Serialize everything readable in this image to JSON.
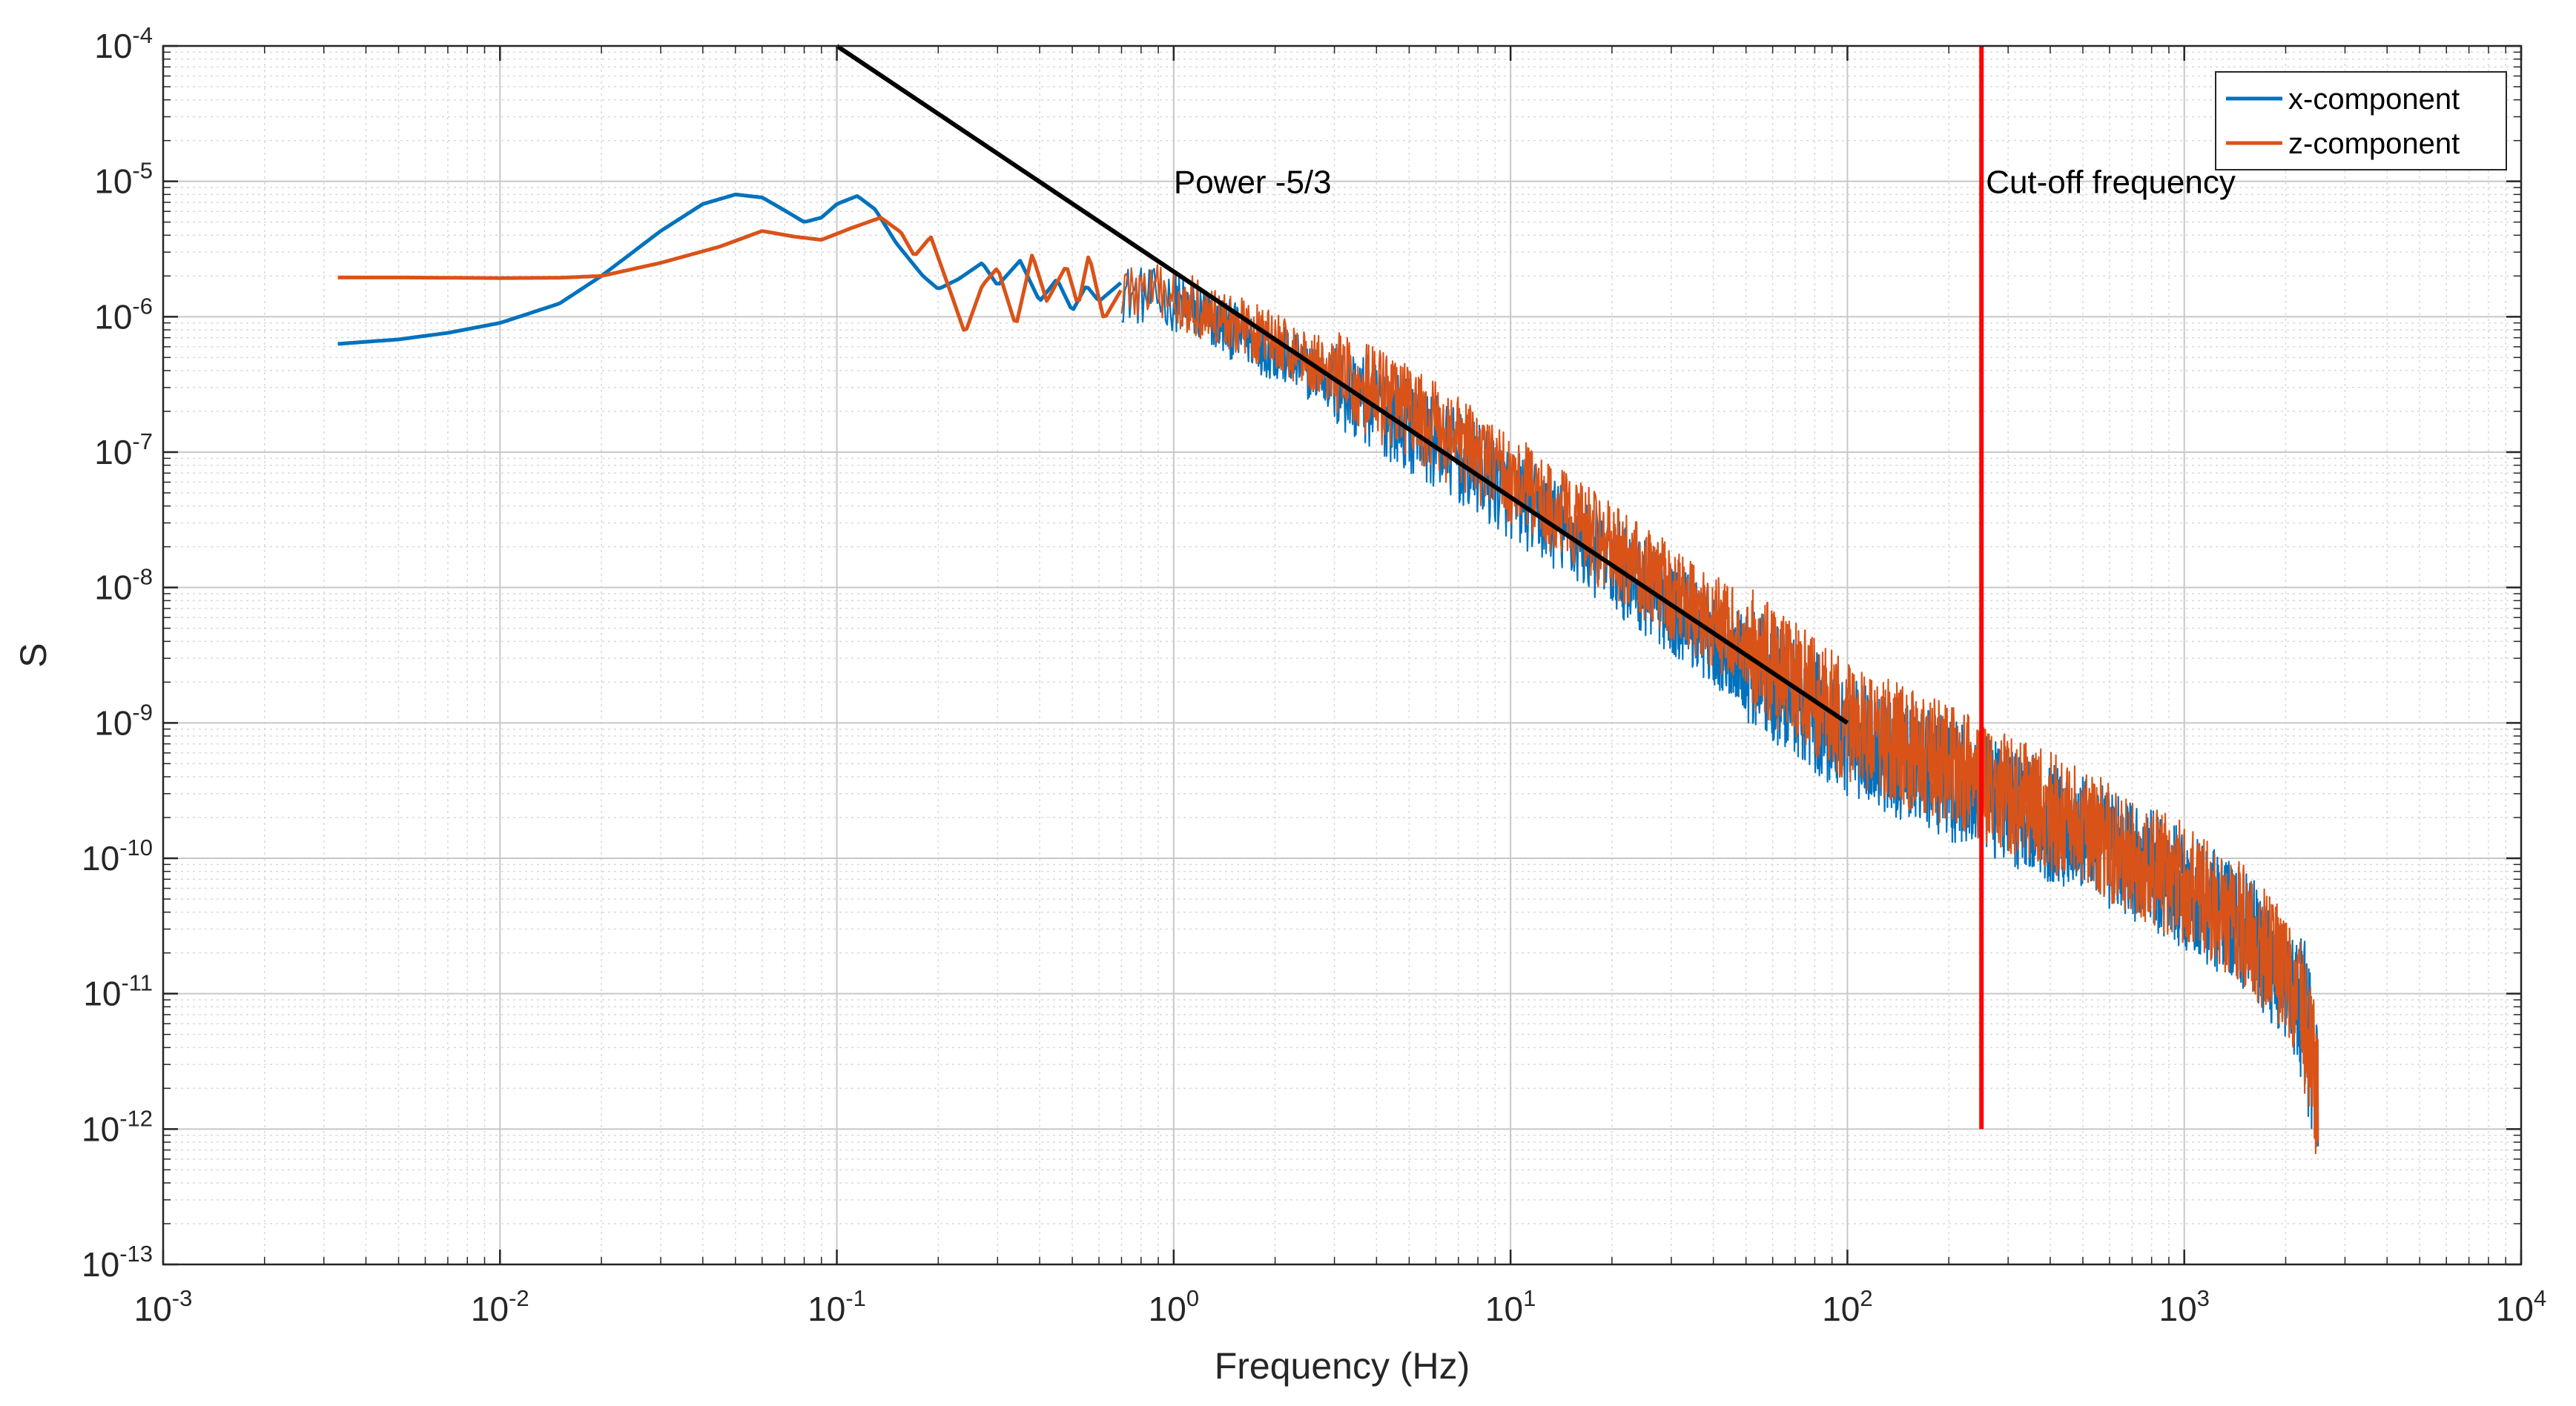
{
  "chart_data": {
    "type": "line",
    "title": "",
    "xlabel": "Frequency (Hz)",
    "ylabel": "S",
    "xscale": "log",
    "yscale": "log",
    "xlim": [
      0.001,
      10000
    ],
    "ylim": [
      1e-13,
      0.0001
    ],
    "grid": true,
    "minor_grid": true,
    "x_ticks": [
      {
        "base": "10",
        "exp": "-3",
        "value": 0.001
      },
      {
        "base": "10",
        "exp": "-2",
        "value": 0.01
      },
      {
        "base": "10",
        "exp": "-1",
        "value": 0.1
      },
      {
        "base": "10",
        "exp": "0",
        "value": 1
      },
      {
        "base": "10",
        "exp": "1",
        "value": 10
      },
      {
        "base": "10",
        "exp": "2",
        "value": 100
      },
      {
        "base": "10",
        "exp": "3",
        "value": 1000
      },
      {
        "base": "10",
        "exp": "4",
        "value": 10000
      }
    ],
    "y_ticks": [
      {
        "base": "10",
        "exp": "-13",
        "value": 1e-13
      },
      {
        "base": "10",
        "exp": "-12",
        "value": 1e-12
      },
      {
        "base": "10",
        "exp": "-11",
        "value": 1e-11
      },
      {
        "base": "10",
        "exp": "-10",
        "value": 1e-10
      },
      {
        "base": "10",
        "exp": "-9",
        "value": 1e-09
      },
      {
        "base": "10",
        "exp": "-8",
        "value": 1e-08
      },
      {
        "base": "10",
        "exp": "-7",
        "value": 1e-07
      },
      {
        "base": "10",
        "exp": "-6",
        "value": 1e-06
      },
      {
        "base": "10",
        "exp": "-5",
        "value": 1e-05
      },
      {
        "base": "10",
        "exp": "-4",
        "value": 0.0001
      }
    ],
    "legend": {
      "location": "top-right",
      "entries": [
        {
          "name": "x-component",
          "color": "#0072BD"
        },
        {
          "name": "z-component",
          "color": "#D95319"
        }
      ]
    },
    "series": [
      {
        "name": "x-component",
        "color": "#0072BD",
        "smooth_points": [
          [
            0.0033,
            6.3e-07
          ],
          [
            0.005,
            6.8e-07
          ],
          [
            0.007,
            7.6e-07
          ],
          [
            0.01,
            9e-07
          ],
          [
            0.015,
            1.25e-06
          ],
          [
            0.02,
            2e-06
          ],
          [
            0.03,
            4.3e-06
          ],
          [
            0.04,
            6.8e-06
          ],
          [
            0.05,
            8e-06
          ],
          [
            0.06,
            7.6e-06
          ],
          [
            0.07,
            6.1e-06
          ],
          [
            0.08,
            5e-06
          ],
          [
            0.09,
            5.4e-06
          ],
          [
            0.1,
            6.8e-06
          ],
          [
            0.115,
            7.8e-06
          ],
          [
            0.13,
            6.2e-06
          ],
          [
            0.15,
            3.5e-06
          ],
          [
            0.18,
            2e-06
          ],
          [
            0.2,
            1.6e-06
          ],
          [
            0.23,
            1.9e-06
          ],
          [
            0.27,
            2.5e-06
          ],
          [
            0.3,
            1.7e-06
          ],
          [
            0.35,
            2.6e-06
          ],
          [
            0.4,
            1.3e-06
          ],
          [
            0.45,
            1.9e-06
          ],
          [
            0.5,
            1.1e-06
          ],
          [
            0.55,
            1.7e-06
          ],
          [
            0.6,
            1.3e-06
          ],
          [
            0.7,
            1.8e-06
          ]
        ],
        "noisy_trend": [
          [
            0.7,
            1.5e-06
          ],
          [
            1,
            1.3e-06
          ],
          [
            2,
            5.5e-07
          ],
          [
            5,
            1.6e-07
          ],
          [
            10,
            5e-08
          ],
          [
            20,
            1.5e-08
          ],
          [
            50,
            2.8e-09
          ],
          [
            100,
            8e-10
          ],
          [
            250,
            3e-10
          ],
          [
            500,
            1.5e-10
          ],
          [
            1000,
            6e-11
          ],
          [
            1500,
            3e-11
          ],
          [
            2000,
            1.3e-11
          ],
          [
            2300,
            6e-12
          ],
          [
            2500,
            2e-12
          ]
        ]
      },
      {
        "name": "z-component",
        "color": "#D95319",
        "smooth_points": [
          [
            0.0033,
            1.95e-06
          ],
          [
            0.005,
            1.95e-06
          ],
          [
            0.01,
            1.93e-06
          ],
          [
            0.015,
            1.94e-06
          ],
          [
            0.02,
            2e-06
          ],
          [
            0.03,
            2.5e-06
          ],
          [
            0.045,
            3.3e-06
          ],
          [
            0.06,
            4.3e-06
          ],
          [
            0.075,
            3.9e-06
          ],
          [
            0.09,
            3.7e-06
          ],
          [
            0.11,
            4.5e-06
          ],
          [
            0.135,
            5.4e-06
          ],
          [
            0.155,
            4.2e-06
          ],
          [
            0.17,
            2.8e-06
          ],
          [
            0.19,
            3.9e-06
          ],
          [
            0.22,
            1.4e-06
          ],
          [
            0.24,
            7.5e-07
          ],
          [
            0.27,
            1.7e-06
          ],
          [
            0.3,
            2.3e-06
          ],
          [
            0.34,
            8.5e-07
          ],
          [
            0.38,
            2.9e-06
          ],
          [
            0.42,
            1.3e-06
          ],
          [
            0.48,
            2.4e-06
          ],
          [
            0.52,
            1.2e-06
          ],
          [
            0.56,
            2.9e-06
          ],
          [
            0.62,
            9.5e-07
          ],
          [
            0.7,
            1.6e-06
          ]
        ],
        "noisy_trend": [
          [
            0.7,
            1.6e-06
          ],
          [
            1,
            1.4e-06
          ],
          [
            2,
            6.5e-07
          ],
          [
            5,
            2e-07
          ],
          [
            10,
            6.5e-08
          ],
          [
            20,
            1.9e-08
          ],
          [
            50,
            3.8e-09
          ],
          [
            100,
            1e-09
          ],
          [
            250,
            3.8e-10
          ],
          [
            500,
            1.7e-10
          ],
          [
            1000,
            6.5e-11
          ],
          [
            1500,
            3.2e-11
          ],
          [
            2000,
            1.4e-11
          ],
          [
            2300,
            6e-12
          ],
          [
            2500,
            2e-12
          ]
        ]
      }
    ],
    "reference_lines": [
      {
        "name": "power-law",
        "label": "Power -5/3",
        "color": "#000000",
        "x": [
          0.1,
          100
        ],
        "y": [
          0.0001,
          1e-09
        ]
      },
      {
        "name": "cutoff",
        "label": "Cut-off frequency",
        "color": "#FF0000",
        "x": [
          250,
          250
        ],
        "y": [
          1e-12,
          0.0001
        ]
      }
    ],
    "annotations": [
      {
        "text": "Power -5/3",
        "x": 1.0,
        "y": 1e-05
      },
      {
        "text": "Cut-off frequency",
        "x": 300,
        "y": 1e-05
      }
    ]
  }
}
